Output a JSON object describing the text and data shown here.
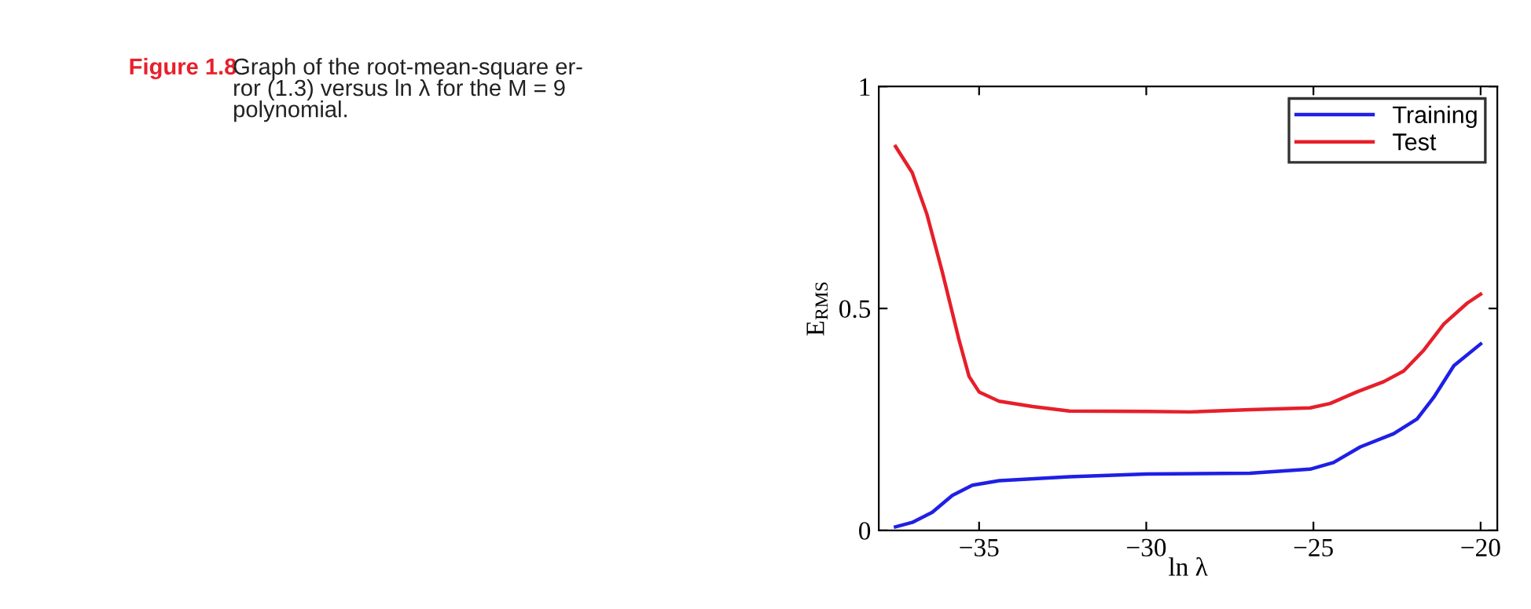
{
  "chart_data": {
    "type": "line",
    "xlabel": "ln λ",
    "ylabel": "E$_{RMS}$",
    "annotations": [
      "Figure 1.8",
      "Graph of the root-mean-square er-\nror (1.3) versus ln λ for the M = 9\npolynomial."
    ],
    "xlim": [
      -38,
      -19.5
    ],
    "ylim": [
      0,
      1
    ],
    "xticks": [
      {
        "value": -35,
        "label": "−35"
      },
      {
        "value": -30,
        "label": "−30"
      },
      {
        "value": -25,
        "label": "−25"
      },
      {
        "value": -20,
        "label": "−20"
      }
    ],
    "yticks": [
      0,
      0.5,
      1
    ],
    "grid": false,
    "legend": "top right",
    "marker": "none",
    "line_style": "solid",
    "series": [
      {
        "name": "Training",
        "color": "#1f1fe6",
        "x": [
          -37.5,
          -37.0,
          -36.4,
          -35.8,
          -35.2,
          -34.4,
          -32.3,
          -30.0,
          -26.9,
          -25.1,
          -24.4,
          -23.6,
          -22.6,
          -21.9,
          -21.4,
          -20.8,
          -20.0
        ],
        "values": [
          0.008,
          0.018,
          0.041,
          0.079,
          0.102,
          0.112,
          0.121,
          0.127,
          0.129,
          0.138,
          0.153,
          0.188,
          0.218,
          0.251,
          0.3,
          0.371,
          0.42
        ]
      },
      {
        "name": "Test",
        "color": "#e61f2a",
        "x": [
          -37.5,
          -37.0,
          -36.56,
          -36.1,
          -35.6,
          -35.3,
          -35.0,
          -34.4,
          -33.4,
          -32.3,
          -30.0,
          -28.7,
          -26.9,
          -25.1,
          -24.5,
          -23.7,
          -22.9,
          -22.3,
          -21.7,
          -21.1,
          -20.4,
          -20.0
        ],
        "values": [
          0.865,
          0.806,
          0.712,
          0.582,
          0.429,
          0.347,
          0.312,
          0.291,
          0.279,
          0.269,
          0.268,
          0.267,
          0.272,
          0.276,
          0.286,
          0.312,
          0.335,
          0.359,
          0.406,
          0.465,
          0.512,
          0.532
        ]
      }
    ]
  }
}
